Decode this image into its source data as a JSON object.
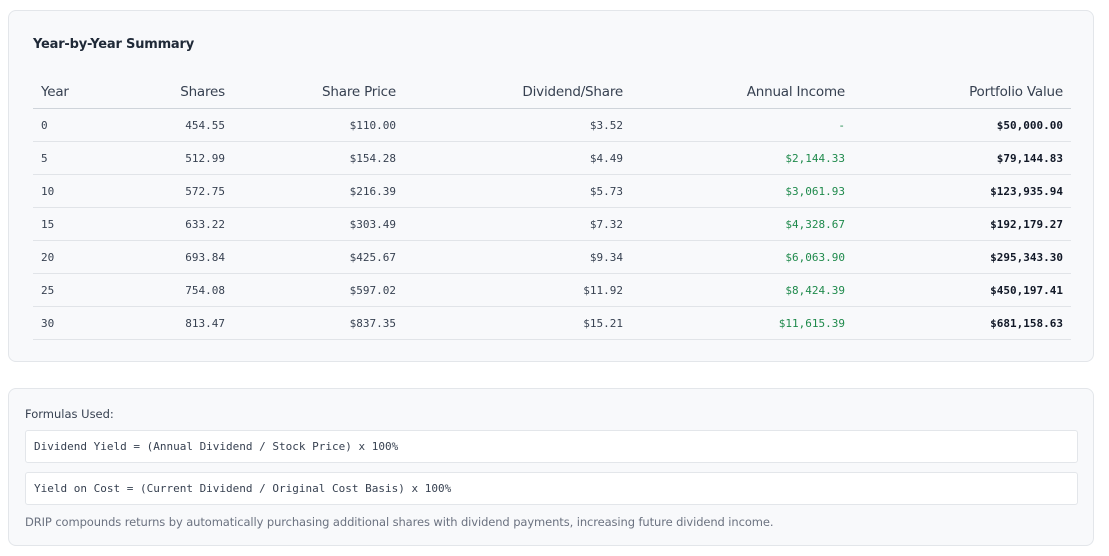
{
  "summary": {
    "title": "Year-by-Year Summary",
    "columns": [
      "Year",
      "Shares",
      "Share Price",
      "Dividend/Share",
      "Annual Income",
      "Portfolio Value"
    ],
    "rows": [
      [
        "0",
        "454.55",
        "$110.00",
        "$3.52",
        "-",
        "$50,000.00"
      ],
      [
        "5",
        "512.99",
        "$154.28",
        "$4.49",
        "$2,144.33",
        "$79,144.83"
      ],
      [
        "10",
        "572.75",
        "$216.39",
        "$5.73",
        "$3,061.93",
        "$123,935.94"
      ],
      [
        "15",
        "633.22",
        "$303.49",
        "$7.32",
        "$4,328.67",
        "$192,179.27"
      ],
      [
        "20",
        "693.84",
        "$425.67",
        "$9.34",
        "$6,063.90",
        "$295,343.30"
      ],
      [
        "25",
        "754.08",
        "$597.02",
        "$11.92",
        "$8,424.39",
        "$450,197.41"
      ],
      [
        "30",
        "813.47",
        "$837.35",
        "$15.21",
        "$11,615.39",
        "$681,158.63"
      ]
    ]
  },
  "formulas": {
    "title": "Formulas Used:",
    "items": [
      "Dividend Yield = (Annual Dividend / Stock Price) x 100%",
      "Yield on Cost = (Current Dividend / Original Cost Basis) x 100%"
    ],
    "note": "DRIP compounds returns by automatically purchasing additional shares with dividend payments, increasing future dividend income."
  },
  "colors": {
    "income_green": "#1f8a4c",
    "card_background": "#f8f9fb",
    "border": "#e3e6ea"
  }
}
